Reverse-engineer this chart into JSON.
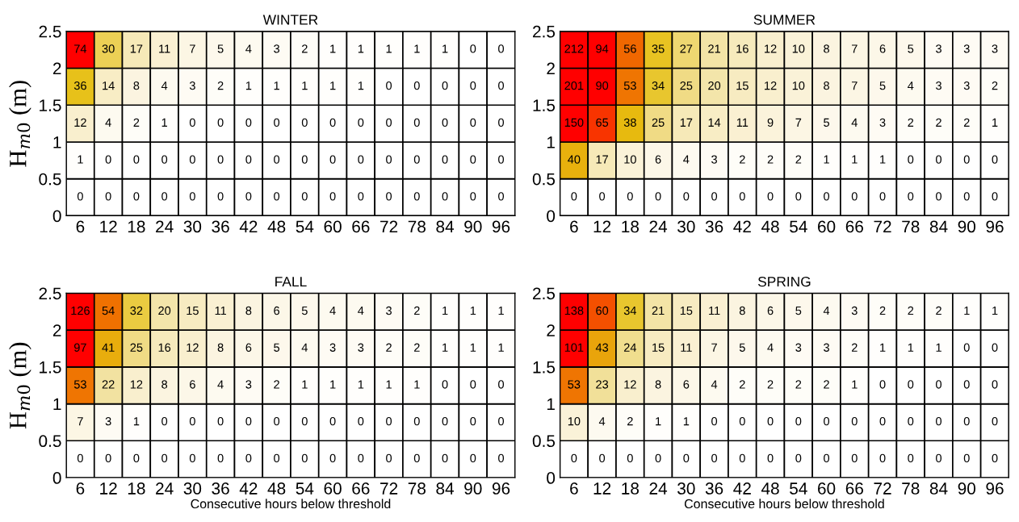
{
  "chart_data": [
    {
      "type": "heatmap",
      "title": "WINTER",
      "ylabel": "H$_{m0}$ (m)",
      "categories": [
        "6",
        "12",
        "18",
        "24",
        "30",
        "36",
        "42",
        "48",
        "54",
        "60",
        "66",
        "72",
        "78",
        "84",
        "90",
        "96"
      ],
      "ylim": [
        0,
        2.5
      ],
      "yticks": [
        0,
        0.5,
        1,
        1.5,
        2,
        2.5
      ],
      "data_labels": true,
      "cells": [
        [
          74,
          30,
          17,
          11,
          7,
          5,
          4,
          3,
          2,
          1,
          1,
          1,
          1,
          1,
          0,
          0
        ],
        [
          36,
          14,
          8,
          4,
          3,
          2,
          1,
          1,
          1,
          1,
          1,
          0,
          0,
          0,
          0,
          0
        ],
        [
          12,
          4,
          2,
          1,
          0,
          0,
          0,
          0,
          0,
          0,
          0,
          0,
          0,
          0,
          0,
          0
        ],
        [
          1,
          0,
          0,
          0,
          0,
          0,
          0,
          0,
          0,
          0,
          0,
          0,
          0,
          0,
          0,
          0
        ],
        [
          0,
          0,
          0,
          0,
          0,
          0,
          0,
          0,
          0,
          0,
          0,
          0,
          0,
          0,
          0,
          0
        ]
      ]
    },
    {
      "type": "heatmap",
      "title": "SUMMER",
      "categories": [
        "6",
        "12",
        "18",
        "24",
        "30",
        "36",
        "42",
        "48",
        "54",
        "60",
        "66",
        "72",
        "78",
        "84",
        "90",
        "96"
      ],
      "ylim": [
        0,
        2.5
      ],
      "yticks": [
        0,
        0.5,
        1,
        1.5,
        2,
        2.5
      ],
      "data_labels": true,
      "cells": [
        [
          212,
          94,
          56,
          35,
          27,
          21,
          16,
          12,
          10,
          8,
          7,
          6,
          5,
          3,
          3,
          3
        ],
        [
          201,
          90,
          53,
          34,
          25,
          20,
          15,
          12,
          10,
          8,
          7,
          5,
          4,
          3,
          3,
          2
        ],
        [
          150,
          65,
          38,
          25,
          17,
          14,
          11,
          9,
          7,
          5,
          4,
          3,
          2,
          2,
          2,
          1
        ],
        [
          40,
          17,
          10,
          6,
          4,
          3,
          2,
          2,
          2,
          1,
          1,
          1,
          0,
          0,
          0,
          0
        ],
        [
          0,
          0,
          0,
          0,
          0,
          0,
          0,
          0,
          0,
          0,
          0,
          0,
          0,
          0,
          0,
          0
        ]
      ]
    },
    {
      "type": "heatmap",
      "title": "FALL",
      "ylabel": "H$_{m0}$ (m)",
      "xlabel": "Consecutive hours below threshold",
      "categories": [
        "6",
        "12",
        "18",
        "24",
        "30",
        "36",
        "42",
        "48",
        "54",
        "60",
        "66",
        "72",
        "78",
        "84",
        "90",
        "96"
      ],
      "ylim": [
        0,
        2.5
      ],
      "yticks": [
        0,
        0.5,
        1,
        1.5,
        2,
        2.5
      ],
      "data_labels": true,
      "cells": [
        [
          126,
          54,
          32,
          20,
          15,
          11,
          8,
          6,
          5,
          4,
          4,
          3,
          2,
          1,
          1,
          1
        ],
        [
          97,
          41,
          25,
          16,
          12,
          8,
          6,
          5,
          4,
          3,
          3,
          2,
          2,
          1,
          1,
          1
        ],
        [
          53,
          22,
          12,
          8,
          6,
          4,
          3,
          2,
          1,
          1,
          1,
          1,
          1,
          0,
          0,
          0
        ],
        [
          7,
          3,
          1,
          0,
          0,
          0,
          0,
          0,
          0,
          0,
          0,
          0,
          0,
          0,
          0,
          0
        ],
        [
          0,
          0,
          0,
          0,
          0,
          0,
          0,
          0,
          0,
          0,
          0,
          0,
          0,
          0,
          0,
          0
        ]
      ]
    },
    {
      "type": "heatmap",
      "title": "SPRING",
      "xlabel": "Consecutive hours below threshold",
      "categories": [
        "6",
        "12",
        "18",
        "24",
        "30",
        "36",
        "42",
        "48",
        "54",
        "60",
        "66",
        "72",
        "78",
        "84",
        "90",
        "96"
      ],
      "ylim": [
        0,
        2.5
      ],
      "yticks": [
        0,
        0.5,
        1,
        1.5,
        2,
        2.5
      ],
      "data_labels": true,
      "cells": [
        [
          138,
          60,
          34,
          21,
          15,
          11,
          8,
          6,
          5,
          4,
          3,
          2,
          2,
          2,
          1,
          1
        ],
        [
          101,
          43,
          24,
          15,
          11,
          7,
          5,
          4,
          3,
          3,
          2,
          1,
          1,
          1,
          0,
          0
        ],
        [
          53,
          23,
          12,
          8,
          6,
          4,
          2,
          2,
          2,
          2,
          1,
          0,
          0,
          0,
          0,
          0
        ],
        [
          10,
          4,
          2,
          1,
          1,
          0,
          0,
          0,
          0,
          0,
          0,
          0,
          0,
          0,
          0,
          0
        ],
        [
          0,
          0,
          0,
          0,
          0,
          0,
          0,
          0,
          0,
          0,
          0,
          0,
          0,
          0,
          0,
          0
        ]
      ]
    }
  ]
}
